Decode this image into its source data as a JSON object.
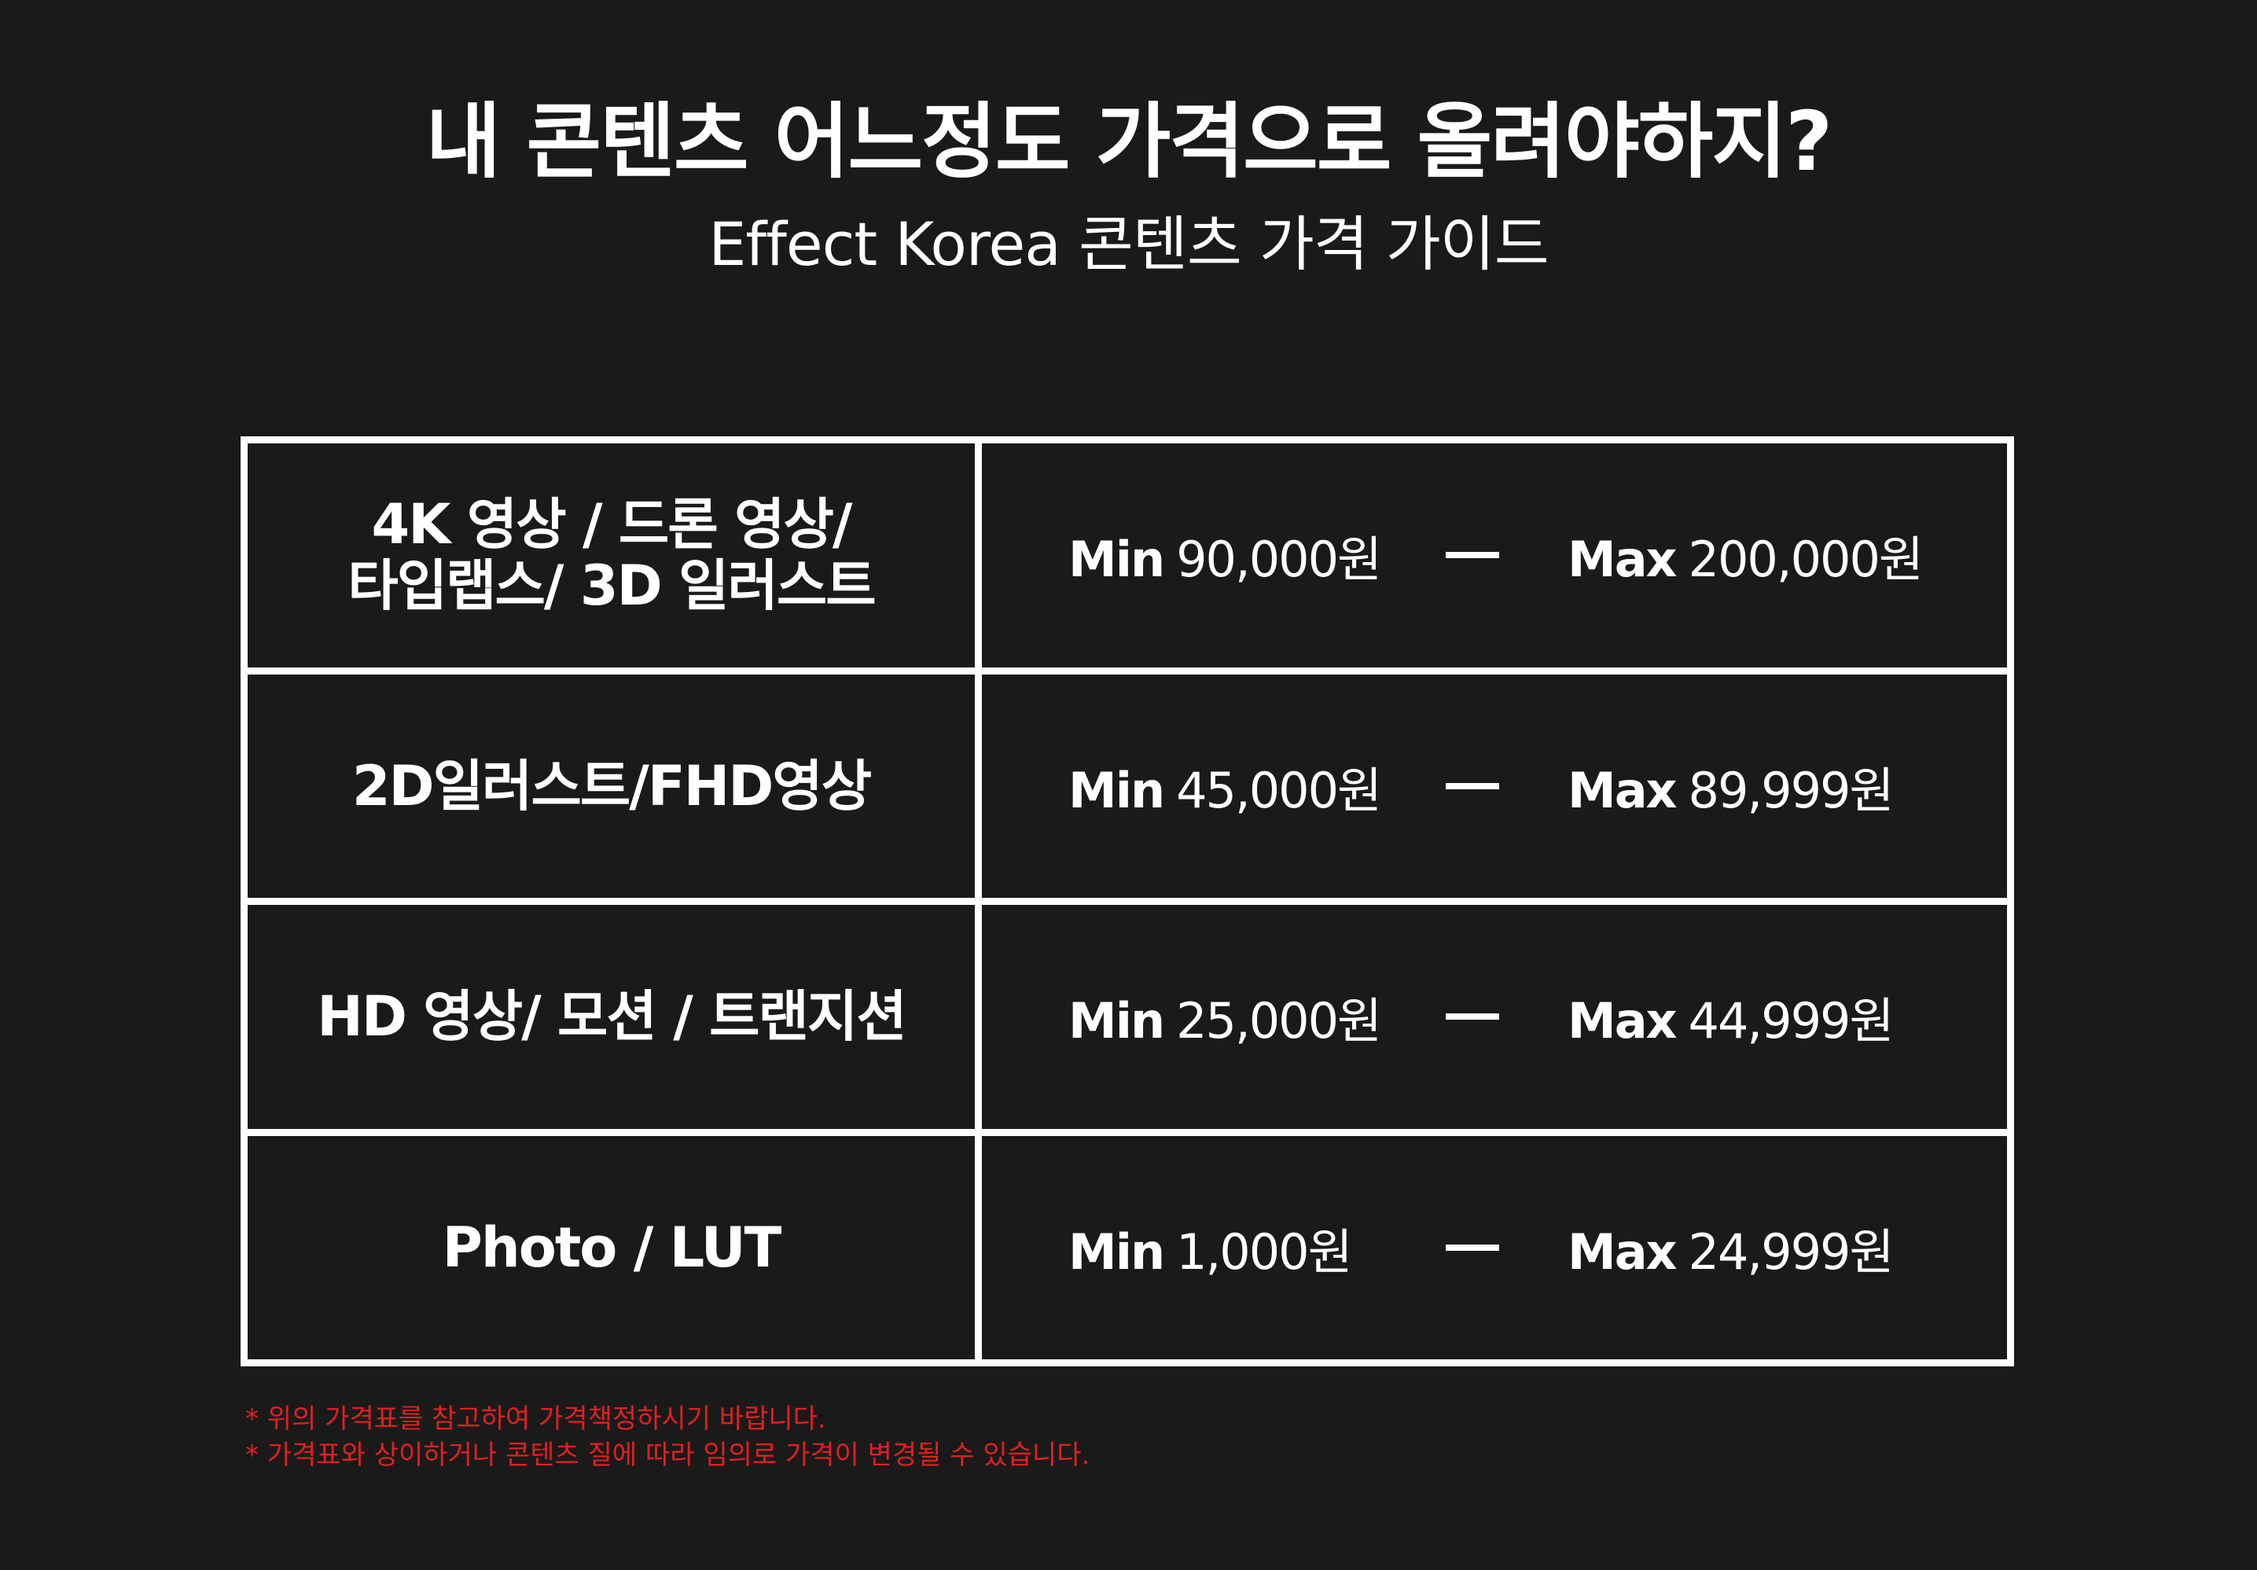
{
  "header": {
    "title": "내 콘텐츠 어느정도 가격으로 올려야하지?",
    "subtitle": "Effect Korea 콘텐츠 가격 가이드"
  },
  "table": {
    "min_label": "Min",
    "max_label": "Max",
    "rows": [
      {
        "category": "4K 영상 / 드론 영상/\n타입랩스/ 3D 일러스트",
        "min": "90,000원",
        "max": "200,000원"
      },
      {
        "category": "2D일러스트/FHD영상",
        "min": "45,000원",
        "max": "89,999원"
      },
      {
        "category": "HD 영상/ 모션 / 트랜지션",
        "min": "25,000원",
        "max": "44,999원"
      },
      {
        "category": "Photo / LUT",
        "min": "1,000원",
        "max": "24,999원"
      }
    ]
  },
  "notes": [
    "* 위의 가격표를 참고하여 가격책정하시기 바랍니다.",
    "* 가격표와 상이하거나 콘텐츠 질에 따라 임의로 가격이 변경될 수 있습니다."
  ],
  "colors": {
    "background": "#1a1a1a",
    "text": "#ffffff",
    "note": "#e02020"
  }
}
